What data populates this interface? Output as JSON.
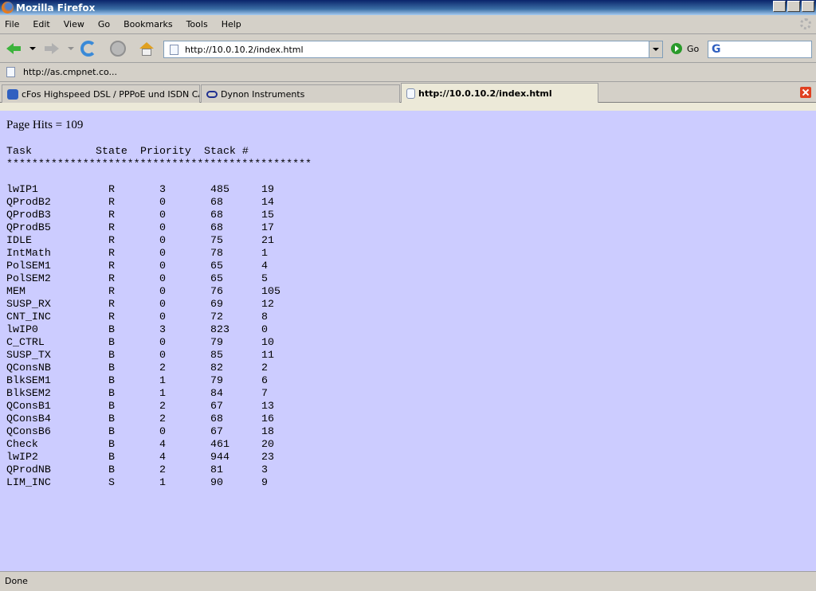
{
  "window": {
    "title": "Mozilla Firefox"
  },
  "menu": [
    "File",
    "Edit",
    "View",
    "Go",
    "Bookmarks",
    "Tools",
    "Help"
  ],
  "navbar": {
    "url": "http://10.0.10.2/index.html",
    "go_label": "Go",
    "search_engine": "G"
  },
  "bookmarks": [
    {
      "label": "http://as.cmpnet.co..."
    }
  ],
  "tabs": [
    {
      "label": "cFos Highspeed DSL / PPPoE und ISDN CAP...",
      "active": false
    },
    {
      "label": "Dynon Instruments",
      "active": false
    },
    {
      "label": "http://10.0.10.2/index.html",
      "active": true
    }
  ],
  "page": {
    "hits": "Page Hits = 109",
    "header": {
      "task": "Task",
      "state": "State",
      "priority": "Priority",
      "stack": "Stack #"
    },
    "separator": "************************************************",
    "rows": [
      [
        "lwIP1",
        "R",
        "3",
        "485",
        "19"
      ],
      [
        "QProdB2",
        "R",
        "0",
        "68",
        "14"
      ],
      [
        "QProdB3",
        "R",
        "0",
        "68",
        "15"
      ],
      [
        "QProdB5",
        "R",
        "0",
        "68",
        "17"
      ],
      [
        "IDLE",
        "R",
        "0",
        "75",
        "21"
      ],
      [
        "IntMath",
        "R",
        "0",
        "78",
        "1"
      ],
      [
        "PolSEM1",
        "R",
        "0",
        "65",
        "4"
      ],
      [
        "PolSEM2",
        "R",
        "0",
        "65",
        "5"
      ],
      [
        "MEM",
        "R",
        "0",
        "76",
        "105"
      ],
      [
        "SUSP_RX",
        "R",
        "0",
        "69",
        "12"
      ],
      [
        "CNT_INC",
        "R",
        "0",
        "72",
        "8"
      ],
      [
        "lwIP0",
        "B",
        "3",
        "823",
        "0"
      ],
      [
        "C_CTRL",
        "B",
        "0",
        "79",
        "10"
      ],
      [
        "SUSP_TX",
        "B",
        "0",
        "85",
        "11"
      ],
      [
        "QConsNB",
        "B",
        "2",
        "82",
        "2"
      ],
      [
        "BlkSEM1",
        "B",
        "1",
        "79",
        "6"
      ],
      [
        "BlkSEM2",
        "B",
        "1",
        "84",
        "7"
      ],
      [
        "QConsB1",
        "B",
        "2",
        "67",
        "13"
      ],
      [
        "QConsB4",
        "B",
        "2",
        "68",
        "16"
      ],
      [
        "QConsB6",
        "B",
        "0",
        "67",
        "18"
      ],
      [
        "Check",
        "B",
        "4",
        "461",
        "20"
      ],
      [
        "lwIP2",
        "B",
        "4",
        "944",
        "23"
      ],
      [
        "QProdNB",
        "B",
        "2",
        "81",
        "3"
      ],
      [
        "LIM_INC",
        "S",
        "1",
        "90",
        "9"
      ]
    ]
  },
  "status": "Done",
  "colors": {
    "page_bg": "#ccccff",
    "chrome": "#d4d0c8"
  }
}
